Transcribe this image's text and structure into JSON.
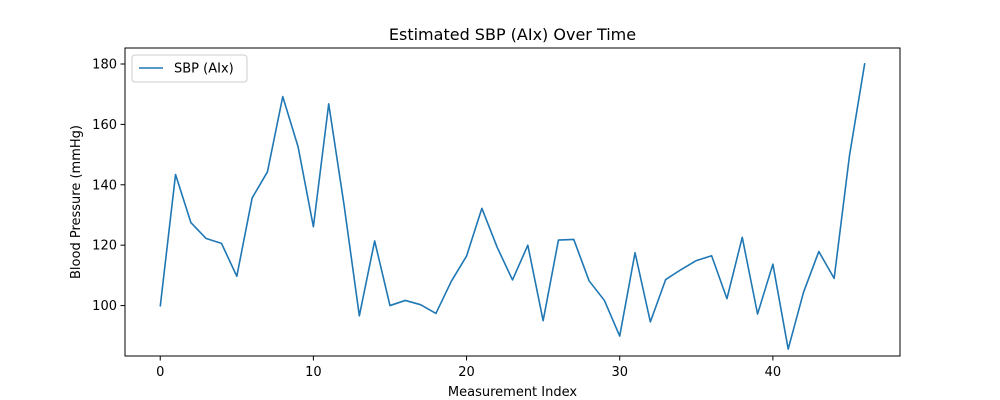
{
  "chart_data": {
    "type": "line",
    "title": "Estimated SBP (AIx) Over Time",
    "xlabel": "Measurement Index",
    "ylabel": "Blood Pressure (mmHg)",
    "xlim": [
      -2.3,
      48.3
    ],
    "ylim": [
      83.3,
      185.3
    ],
    "xticks": [
      0,
      10,
      20,
      30,
      40
    ],
    "yticks": [
      100,
      120,
      140,
      160,
      180
    ],
    "grid": false,
    "legend_position": "upper-left",
    "series": [
      {
        "name": "SBP (AIx)",
        "color": "#1f77b4",
        "x": [
          0,
          1,
          2,
          3,
          4,
          5,
          6,
          7,
          8,
          9,
          10,
          11,
          12,
          13,
          14,
          15,
          16,
          17,
          18,
          19,
          20,
          21,
          22,
          23,
          24,
          25,
          26,
          27,
          28,
          29,
          30,
          31,
          32,
          33,
          34,
          35,
          36,
          37,
          38,
          39,
          40,
          41,
          42,
          43,
          44,
          45,
          46
        ],
        "values": [
          99.7,
          143.4,
          127.5,
          122.2,
          120.6,
          109.7,
          135.6,
          144.3,
          169.2,
          152.6,
          126.1,
          166.8,
          133.4,
          96.6,
          121.4,
          100.0,
          101.7,
          100.3,
          97.4,
          108.0,
          116.4,
          132.2,
          119.3,
          108.5,
          120.0,
          95.0,
          121.7,
          121.9,
          108.2,
          101.7,
          89.9,
          117.5,
          94.6,
          108.6,
          111.9,
          114.9,
          116.5,
          102.3,
          122.6,
          97.2,
          113.7,
          85.6,
          104.4,
          117.9,
          109.0,
          149.6,
          180.3
        ]
      }
    ]
  }
}
